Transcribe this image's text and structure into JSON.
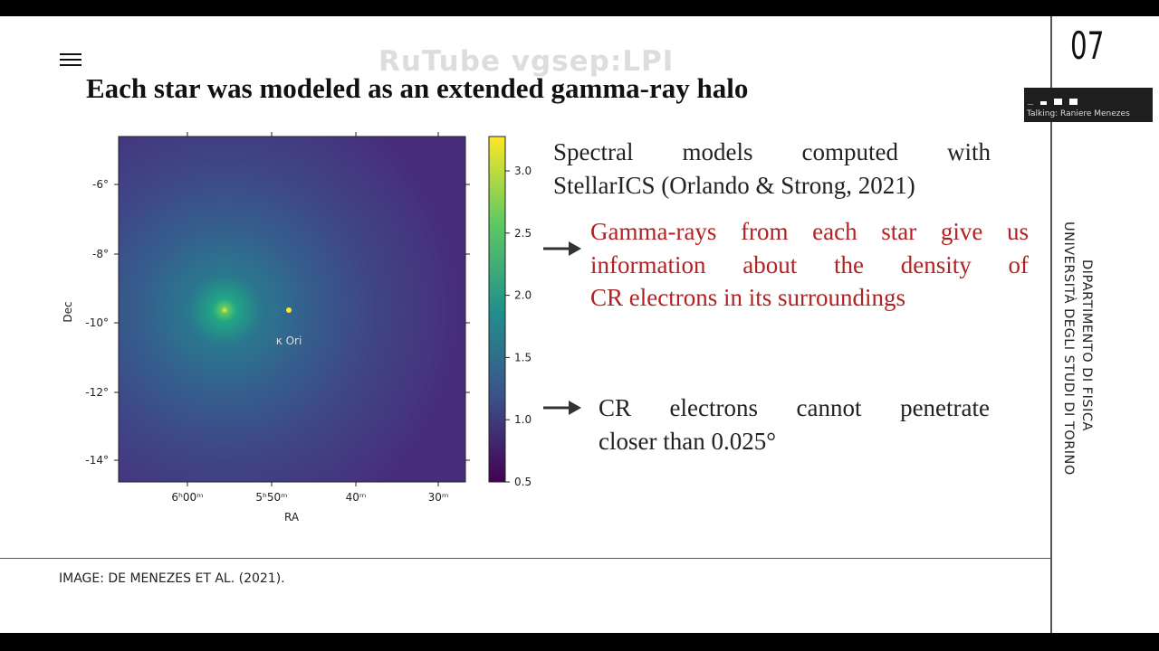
{
  "slide": {
    "title": "Each star was modeled as an extended gamma-ray halo",
    "watermark": "RuTube vgsep:LPI",
    "number": "07",
    "talking": "Talking: Raniere Menezes",
    "figure": {
      "ylabel": "Dec",
      "xlabel": "RA",
      "yticks": [
        "-6°",
        "-8°",
        "-10°",
        "-12°",
        "-14°"
      ],
      "xticks": [
        "6ʰ00ᵐ",
        "5ʰ50ᵐ",
        "40ᵐ",
        "30ᵐ"
      ],
      "source_label": "κ Ori",
      "colorbar_ticks": [
        "3.0",
        "2.5",
        "2.0",
        "1.5",
        "1.0",
        "0.5"
      ]
    },
    "text1": [
      "Spectral models computed with",
      "StellarICS (Orlando & Strong, 2021)"
    ],
    "text2": [
      "Gamma-rays from each star give us",
      "information about the density of",
      "CR electrons in its surroundings"
    ],
    "text3": [
      "CR electrons cannot penetrate",
      "closer than 0.025°"
    ],
    "caption": "IMAGE:  DE MENEZES ET AL. (2021).",
    "side": [
      "DIPARTIMENTO DI FISICA",
      "UNIVERSITÀ DEGLI STUDI DI TORINO"
    ]
  }
}
